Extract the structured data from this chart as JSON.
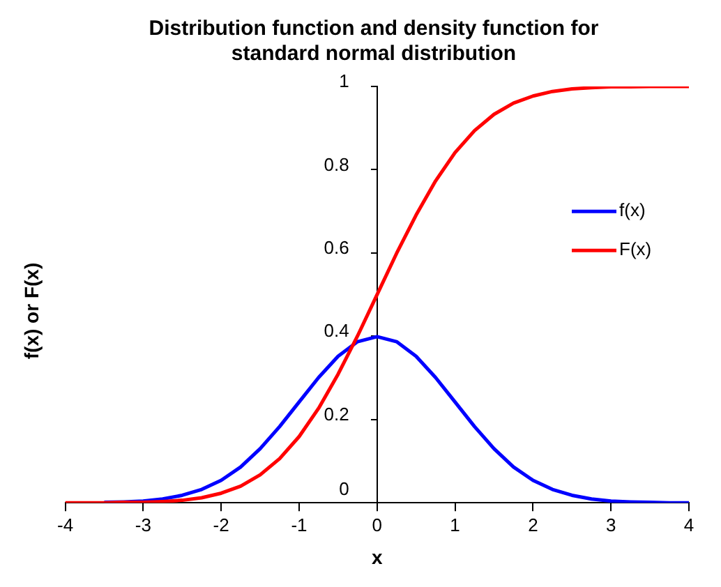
{
  "chart_data": {
    "type": "line",
    "title": "Distribution function and density function for standard normal distribution",
    "xlabel": "x",
    "ylabel": "f(x) or F(x)",
    "x": [
      -4,
      -3.75,
      -3.5,
      -3.25,
      -3,
      -2.75,
      -2.5,
      -2.25,
      -2,
      -1.75,
      -1.5,
      -1.25,
      -1,
      -0.75,
      -0.5,
      -0.25,
      0,
      0.25,
      0.5,
      0.75,
      1,
      1.25,
      1.5,
      1.75,
      2,
      2.25,
      2.5,
      2.75,
      3,
      3.25,
      3.5,
      3.75,
      4
    ],
    "series": [
      {
        "name": "f(x)",
        "color": "#0000ff",
        "values": [
          null,
          null,
          0.001,
          0.002,
          0.004,
          0.009,
          0.018,
          0.032,
          0.054,
          0.086,
          0.13,
          0.183,
          0.242,
          0.301,
          0.352,
          0.387,
          0.399,
          0.387,
          0.352,
          0.301,
          0.242,
          0.183,
          0.13,
          0.086,
          0.054,
          0.032,
          0.018,
          0.009,
          0.004,
          0.002,
          0.001,
          0.0,
          0.0
        ]
      },
      {
        "name": "F(x)",
        "color": "#ff0000",
        "values": [
          0.0,
          0.0,
          0.0,
          0.001,
          0.001,
          0.003,
          0.006,
          0.012,
          0.023,
          0.04,
          0.067,
          0.106,
          0.159,
          0.227,
          0.309,
          0.401,
          0.5,
          0.599,
          0.691,
          0.773,
          0.841,
          0.894,
          0.933,
          0.96,
          0.977,
          0.988,
          0.994,
          0.997,
          0.999,
          0.999,
          1.0,
          1.0,
          1.0
        ]
      }
    ],
    "xlim": [
      -4,
      4
    ],
    "xticks": [
      -4,
      -3,
      -2,
      -1,
      0,
      1,
      2,
      3,
      4
    ],
    "ylim": [
      0,
      1
    ],
    "yticks": [
      0,
      0.2,
      0.4,
      0.6,
      0.8,
      1
    ],
    "grid": false,
    "legend": "right",
    "marker": "none",
    "line_style": "solid"
  }
}
